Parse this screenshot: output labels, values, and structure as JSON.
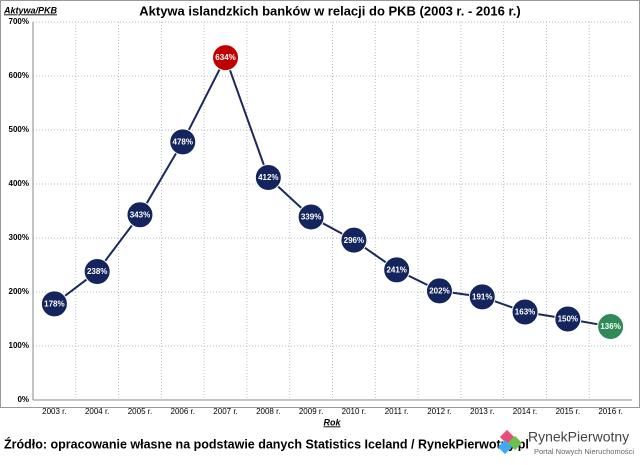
{
  "chart_data": {
    "type": "line",
    "title": "Aktywa islandzkich banków w relacji do PKB (2003 r. - 2016 r.)",
    "y_label": "Aktywa/PKB",
    "x_label": "Rok",
    "categories": [
      "2003 r.",
      "2004 r.",
      "2005 r.",
      "2006 r.",
      "2007 r.",
      "2008 r.",
      "2009 r.",
      "2010 r.",
      "2011 r.",
      "2012 r.",
      "2013 r.",
      "2014 r.",
      "2015 r.",
      "2016 r."
    ],
    "series": [
      {
        "color": "#1b2a5c",
        "values": [
          178,
          238,
          343,
          478,
          634,
          412,
          339,
          296,
          241,
          202,
          191,
          163,
          150,
          136
        ],
        "value_labels": [
          "178%",
          "238%",
          "343%",
          "478%",
          "634%",
          "412%",
          "339%",
          "296%",
          "241%",
          "202%",
          "191%",
          "163%",
          "150%",
          "136%"
        ],
        "point_colors": [
          "#14255e",
          "#14255e",
          "#14255e",
          "#14255e",
          "#c00000",
          "#14255e",
          "#14255e",
          "#14255e",
          "#14255e",
          "#14255e",
          "#14255e",
          "#14255e",
          "#14255e",
          "#2e8b57"
        ]
      }
    ],
    "ylim": [
      0,
      700
    ],
    "yticks": [
      {
        "value": 0,
        "label": "0%"
      },
      {
        "value": 100,
        "label": "100%"
      },
      {
        "value": 200,
        "label": "200%"
      },
      {
        "value": 300,
        "label": "300%"
      },
      {
        "value": 400,
        "label": "400%"
      },
      {
        "value": 500,
        "label": "500%"
      },
      {
        "value": 600,
        "label": "600%"
      },
      {
        "value": 700,
        "label": "700%"
      }
    ],
    "grid": true
  },
  "source": "Źródło: opracowanie własne na podstawie danych Statistics Iceland / RynekPierwotny.pl",
  "logo": {
    "name": "RynekPierwotny",
    "tagline": "Portal Nowych Nieruchomości"
  }
}
